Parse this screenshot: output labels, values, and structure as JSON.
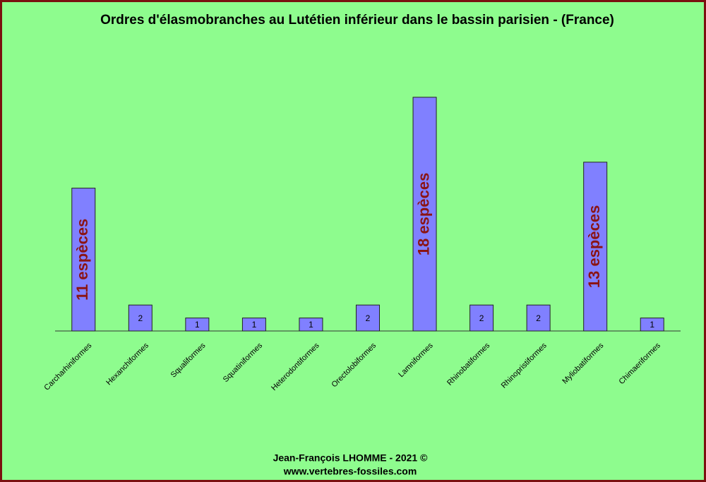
{
  "chart_data": {
    "type": "bar",
    "title": "Ordres d'élasmobranches au Lutétien inférieur dans le bassin parisien - (France)",
    "categories": [
      "Carcharhiniformes",
      "Hexanchiformes",
      "Squaliformes",
      "Squatiniformes",
      "Heterodontiformes",
      "Orectolobiformes",
      "Lamniformes",
      "Rhinobatiformes",
      "Rhinopristiformes",
      "Myliobatiformes",
      "Chimaeriformes"
    ],
    "values": [
      11,
      2,
      1,
      1,
      1,
      2,
      18,
      2,
      2,
      13,
      1
    ],
    "value_labels": [
      "11 espèces",
      "2",
      "1",
      "1",
      "1",
      "2",
      "18 espèces",
      "2",
      "2",
      "13 espèces",
      "1"
    ],
    "color": "#8080ff",
    "ylim": [
      0,
      20
    ],
    "footer": [
      "Jean-François LHOMME  -  2021  ©",
      "www.vertebres-fossiles.com"
    ]
  }
}
